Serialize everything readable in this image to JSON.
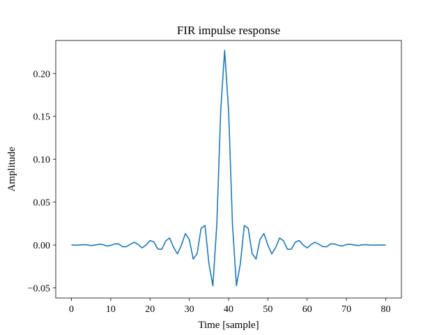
{
  "chart_data": {
    "type": "line",
    "title": "FIR impulse response",
    "xlabel": "Time [sample]",
    "ylabel": "Amplitude",
    "xlim": [
      -4,
      84
    ],
    "ylim": [
      -0.0618,
      0.2385
    ],
    "grid": false,
    "line_color": "#1f77b4",
    "xticks": [
      0,
      10,
      20,
      30,
      40,
      50,
      60,
      70,
      80
    ],
    "xtick_labels": [
      "0",
      "10",
      "20",
      "30",
      "40",
      "50",
      "60",
      "70",
      "80"
    ],
    "yticks": [
      -0.05,
      0.0,
      0.05,
      0.1,
      0.15,
      0.2
    ],
    "ytick_labels": [
      "−0.05",
      "0.00",
      "0.05",
      "0.10",
      "0.15",
      "0.20"
    ],
    "series": [
      {
        "x": [
          0,
          1,
          2,
          3,
          4,
          5,
          6,
          7,
          8,
          9,
          10,
          11,
          12,
          13,
          14,
          15,
          16,
          17,
          18,
          19,
          20,
          21,
          22,
          23,
          24,
          25,
          26,
          27,
          28,
          29,
          30,
          31,
          32,
          33,
          34,
          35,
          36,
          37,
          38,
          39,
          40,
          41,
          42,
          43,
          44,
          45,
          46,
          47,
          48,
          49,
          50,
          51,
          52,
          53,
          54,
          55,
          56,
          57,
          58,
          59,
          60,
          61,
          62,
          63,
          64,
          65,
          66,
          67,
          68,
          69,
          70,
          71,
          72,
          73,
          74,
          75,
          76,
          77,
          78,
          79,
          80
        ],
        "y": [
          0.0,
          -0.0002,
          0.0,
          0.0004,
          0.0002,
          -0.0006,
          0.0,
          0.0008,
          0.0006,
          -0.0012,
          -0.0004,
          0.0012,
          0.0013,
          -0.002,
          -0.0018,
          0.0008,
          0.0033,
          0.0005,
          -0.0034,
          0.0,
          0.0052,
          0.0035,
          -0.0048,
          -0.005,
          0.0048,
          0.0082,
          -0.0028,
          -0.0104,
          0.0,
          0.0134,
          0.0064,
          -0.0164,
          -0.01,
          0.0195,
          0.0228,
          -0.0218,
          -0.0475,
          0.0235,
          0.157,
          0.227,
          0.157,
          0.0235,
          -0.0475,
          -0.0218,
          0.0228,
          0.0195,
          -0.01,
          -0.0164,
          0.0064,
          0.0134,
          0.0,
          -0.0104,
          -0.0028,
          0.0082,
          0.0048,
          -0.005,
          -0.0048,
          0.0035,
          0.0052,
          0.0,
          -0.0034,
          0.0005,
          0.0033,
          0.0008,
          -0.0018,
          -0.002,
          0.0013,
          0.0012,
          -0.0004,
          -0.0012,
          0.0006,
          0.0008,
          0.0,
          -0.0006,
          0.0002,
          0.0004,
          0.0,
          -0.0002,
          0.0,
          0.0,
          0.0
        ]
      }
    ]
  }
}
